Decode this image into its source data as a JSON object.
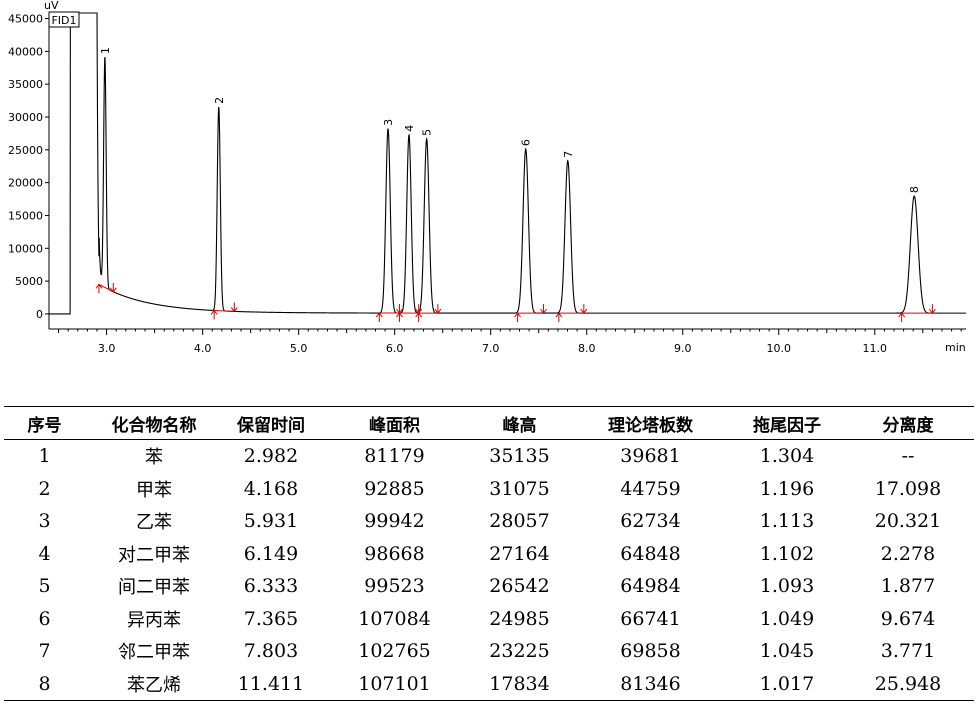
{
  "chart_data": {
    "type": "line",
    "detector_label": "FID1",
    "y_unit": "uV",
    "x_unit": "min",
    "xlim": [
      2.4,
      11.95
    ],
    "ylim": [
      -2300,
      46000
    ],
    "x_ticks": [
      3.0,
      4.0,
      5.0,
      6.0,
      7.0,
      8.0,
      9.0,
      10.0,
      11.0
    ],
    "x_tick_labels": [
      "3.0",
      "4.0",
      "5.0",
      "6.0",
      "7.0",
      "8.0",
      "9.0",
      "10.0",
      "11.0"
    ],
    "y_ticks": [
      0,
      5000,
      10000,
      15000,
      20000,
      25000,
      30000,
      35000,
      40000,
      45000
    ],
    "y_tick_labels": [
      "0",
      "5000",
      "10000",
      "15000",
      "20000",
      "25000",
      "30000",
      "35000",
      "40000",
      "45000"
    ],
    "solvent": {
      "start": 2.62,
      "end": 2.9,
      "max": 46000
    },
    "baseline": {
      "start_time": 2.92,
      "end_time": 11.95,
      "start_value": 4500,
      "floor_value": 120,
      "decay": 0.5
    },
    "peaks": [
      {
        "label": "1",
        "time": 2.982,
        "height": 35135,
        "sigma": 0.013,
        "start": 2.92,
        "end": 3.07
      },
      {
        "label": "2",
        "time": 4.168,
        "height": 31075,
        "sigma": 0.016,
        "start": 4.12,
        "end": 4.33
      },
      {
        "label": "3",
        "time": 5.931,
        "height": 28057,
        "sigma": 0.023,
        "start": 5.84,
        "end": 6.05
      },
      {
        "label": "4",
        "time": 6.149,
        "height": 27164,
        "sigma": 0.023,
        "start": 6.05,
        "end": 6.25
      },
      {
        "label": "5",
        "time": 6.333,
        "height": 26542,
        "sigma": 0.025,
        "start": 6.25,
        "end": 6.45
      },
      {
        "label": "6",
        "time": 7.365,
        "height": 24985,
        "sigma": 0.028,
        "start": 7.28,
        "end": 7.55
      },
      {
        "label": "7",
        "time": 7.803,
        "height": 23225,
        "sigma": 0.029,
        "start": 7.71,
        "end": 7.97
      },
      {
        "label": "8",
        "time": 11.411,
        "height": 17834,
        "sigma": 0.04,
        "start": 11.28,
        "end": 11.6
      }
    ],
    "colors": {
      "trace": "#000000",
      "integration": "#e00000",
      "axis": "#000000"
    }
  },
  "table": {
    "headers": [
      "序号",
      "化合物名称",
      "保留时间",
      "峰面积",
      "峰高",
      "理论塔板数",
      "拖尾因子",
      "分离度"
    ],
    "rows": [
      [
        "1",
        "苯",
        "2.982",
        "81179",
        "35135",
        "39681",
        "1.304",
        "--"
      ],
      [
        "2",
        "甲苯",
        "4.168",
        "92885",
        "31075",
        "44759",
        "1.196",
        "17.098"
      ],
      [
        "3",
        "乙苯",
        "5.931",
        "99942",
        "28057",
        "62734",
        "1.113",
        "20.321"
      ],
      [
        "4",
        "对二甲苯",
        "6.149",
        "98668",
        "27164",
        "64848",
        "1.102",
        "2.278"
      ],
      [
        "5",
        "间二甲苯",
        "6.333",
        "99523",
        "26542",
        "64984",
        "1.093",
        "1.877"
      ],
      [
        "6",
        "异丙苯",
        "7.365",
        "107084",
        "24985",
        "66741",
        "1.049",
        "9.674"
      ],
      [
        "7",
        "邻二甲苯",
        "7.803",
        "102765",
        "23225",
        "69858",
        "1.045",
        "3.771"
      ],
      [
        "8",
        "苯乙烯",
        "11.411",
        "107101",
        "17834",
        "81346",
        "1.017",
        "25.948"
      ]
    ]
  }
}
